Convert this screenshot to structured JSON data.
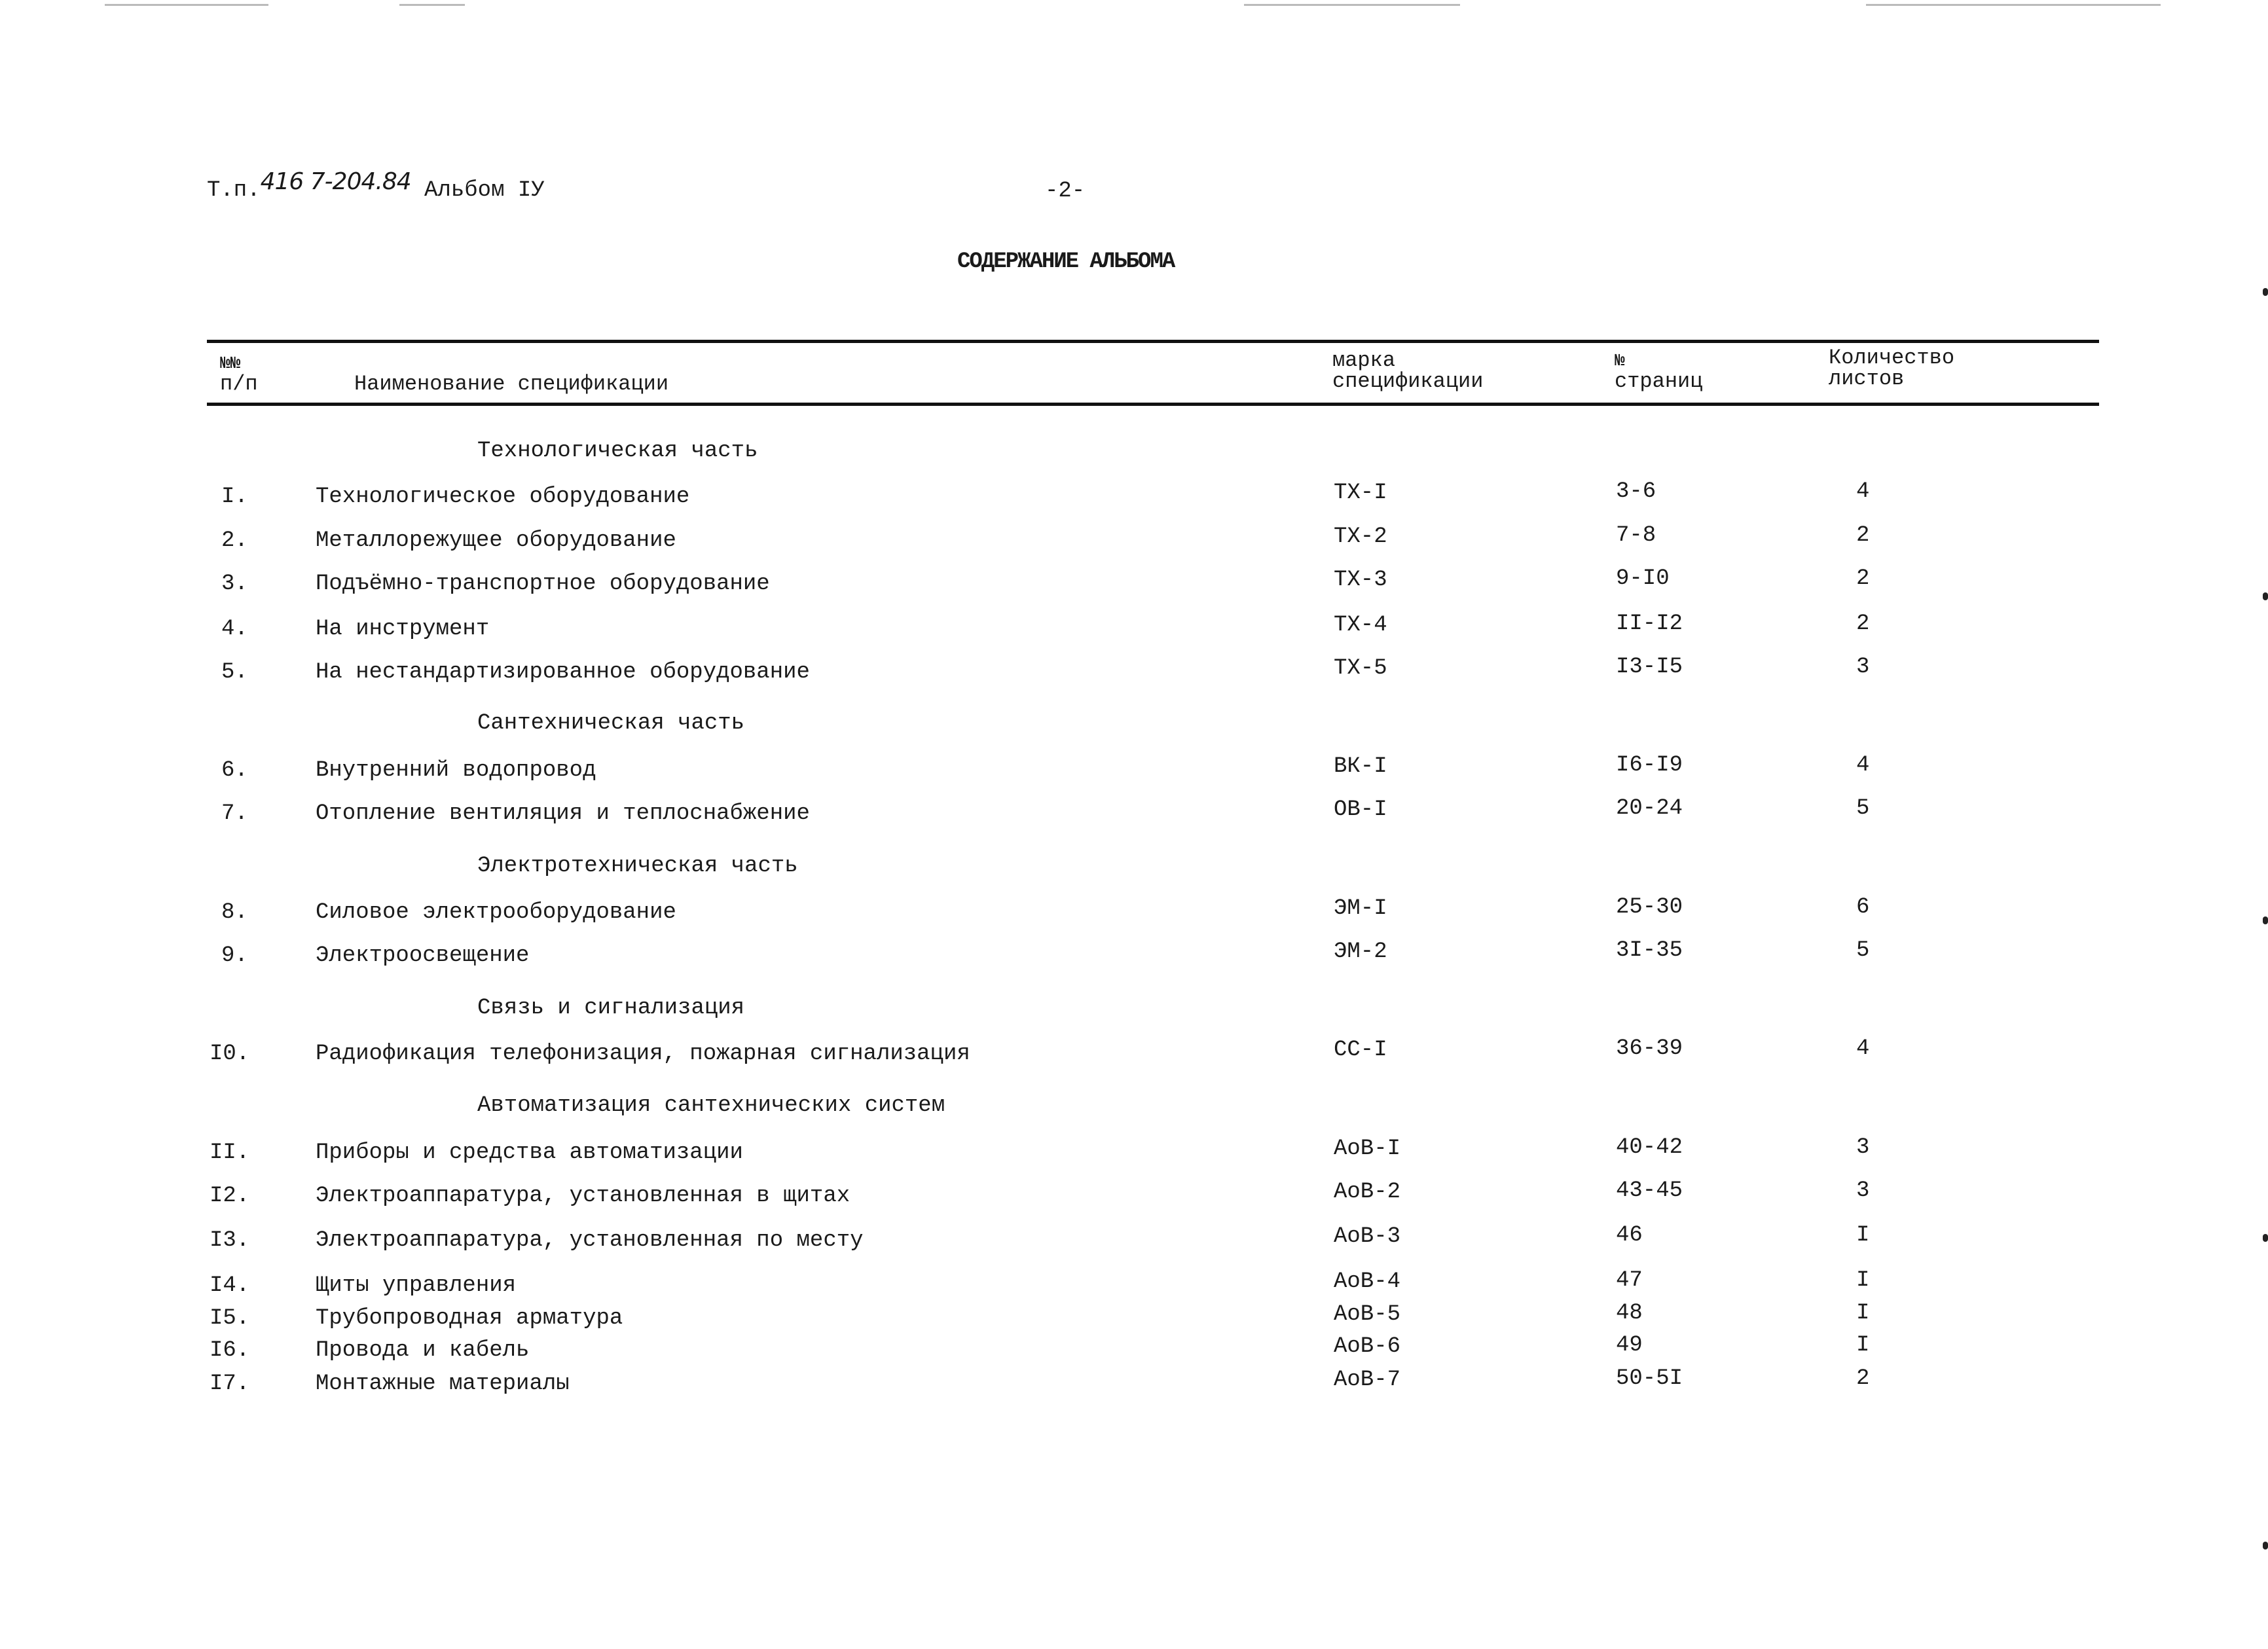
{
  "header": {
    "prefix": "Т.п.",
    "handwritten_number": "416 7-204.84",
    "album": "Альбом IУ",
    "page_number": "-2-",
    "title": "СОДЕРЖАНИЕ АЛЬБОМА"
  },
  "columns": {
    "num_line1": "№№",
    "num_line2": "п/п",
    "name": "Наименование спецификации",
    "mark_line1": "марка",
    "mark_line2": "спецификации",
    "pages_line1": "№",
    "pages_line2": "страниц",
    "count_line1": "Количество",
    "count_line2": "листов"
  },
  "rows": [
    {
      "type": "section",
      "title": "Технологическая часть"
    },
    {
      "type": "item",
      "num": "I.",
      "name": "Технологическое оборудование",
      "mark": "ТХ-I",
      "pages": "3-6",
      "count": "4"
    },
    {
      "type": "item",
      "num": "2.",
      "name": "Металлорежущее оборудование",
      "mark": "ТХ-2",
      "pages": "7-8",
      "count": "2"
    },
    {
      "type": "item",
      "num": "3.",
      "name": "Подъёмно-транспортное оборудование",
      "mark": "ТХ-3",
      "pages": "9-I0",
      "count": "2"
    },
    {
      "type": "item",
      "num": "4.",
      "name": "На инструмент",
      "mark": "ТХ-4",
      "pages": "II-I2",
      "count": "2"
    },
    {
      "type": "item",
      "num": "5.",
      "name": "На нестандартизированное оборудование",
      "mark": "ТХ-5",
      "pages": "I3-I5",
      "count": "3"
    },
    {
      "type": "section",
      "title": "Сантехническая часть"
    },
    {
      "type": "item",
      "num": "6.",
      "name": "Внутренний водопровод",
      "mark": "ВК-I",
      "pages": "I6-I9",
      "count": "4"
    },
    {
      "type": "item",
      "num": "7.",
      "name": "Отопление вентиляция и теплоснабжение",
      "mark": "ОВ-I",
      "pages": "20-24",
      "count": "5"
    },
    {
      "type": "section",
      "title": "Электротехническая часть"
    },
    {
      "type": "item",
      "num": "8.",
      "name": "Силовое электрооборудование",
      "mark": "ЭМ-I",
      "pages": "25-30",
      "count": "6"
    },
    {
      "type": "item",
      "num": "9.",
      "name": "Электроосвещение",
      "mark": "ЭМ-2",
      "pages": "3I-35",
      "count": "5"
    },
    {
      "type": "section",
      "title": "Связь и сигнализация"
    },
    {
      "type": "item",
      "num": "I0.",
      "name": "Радиофикация телефонизация, пожарная сигнализация",
      "mark": "СС-I",
      "pages": "36-39",
      "count": "4"
    },
    {
      "type": "section",
      "title": "Автоматизация сантехнических систем"
    },
    {
      "type": "item",
      "num": "II.",
      "name": "Приборы и средства автоматизации",
      "mark": "АоВ-I",
      "pages": "40-42",
      "count": "3"
    },
    {
      "type": "item",
      "num": "I2.",
      "name": "Электроаппаратура, установленная в щитах",
      "mark": "АоВ-2",
      "pages": "43-45",
      "count": "3"
    },
    {
      "type": "item",
      "num": "I3.",
      "name": "Электроаппаратура, установленная по месту",
      "mark": "АоВ-3",
      "pages": "46",
      "count": "I"
    },
    {
      "type": "item",
      "num": "I4.",
      "name": "Щиты управления",
      "mark": "АоВ-4",
      "pages": "47",
      "count": "I"
    },
    {
      "type": "item",
      "num": "I5.",
      "name": "Трубопроводная арматура",
      "mark": "АоВ-5",
      "pages": "48",
      "count": "I"
    },
    {
      "type": "item",
      "num": "I6.",
      "name": "Провода и кабель",
      "mark": "АоВ-6",
      "pages": "49",
      "count": "I"
    },
    {
      "type": "item",
      "num": "I7.",
      "name": "Монтажные материалы",
      "mark": "АоВ-7",
      "pages": "50-5I",
      "count": "2"
    }
  ]
}
